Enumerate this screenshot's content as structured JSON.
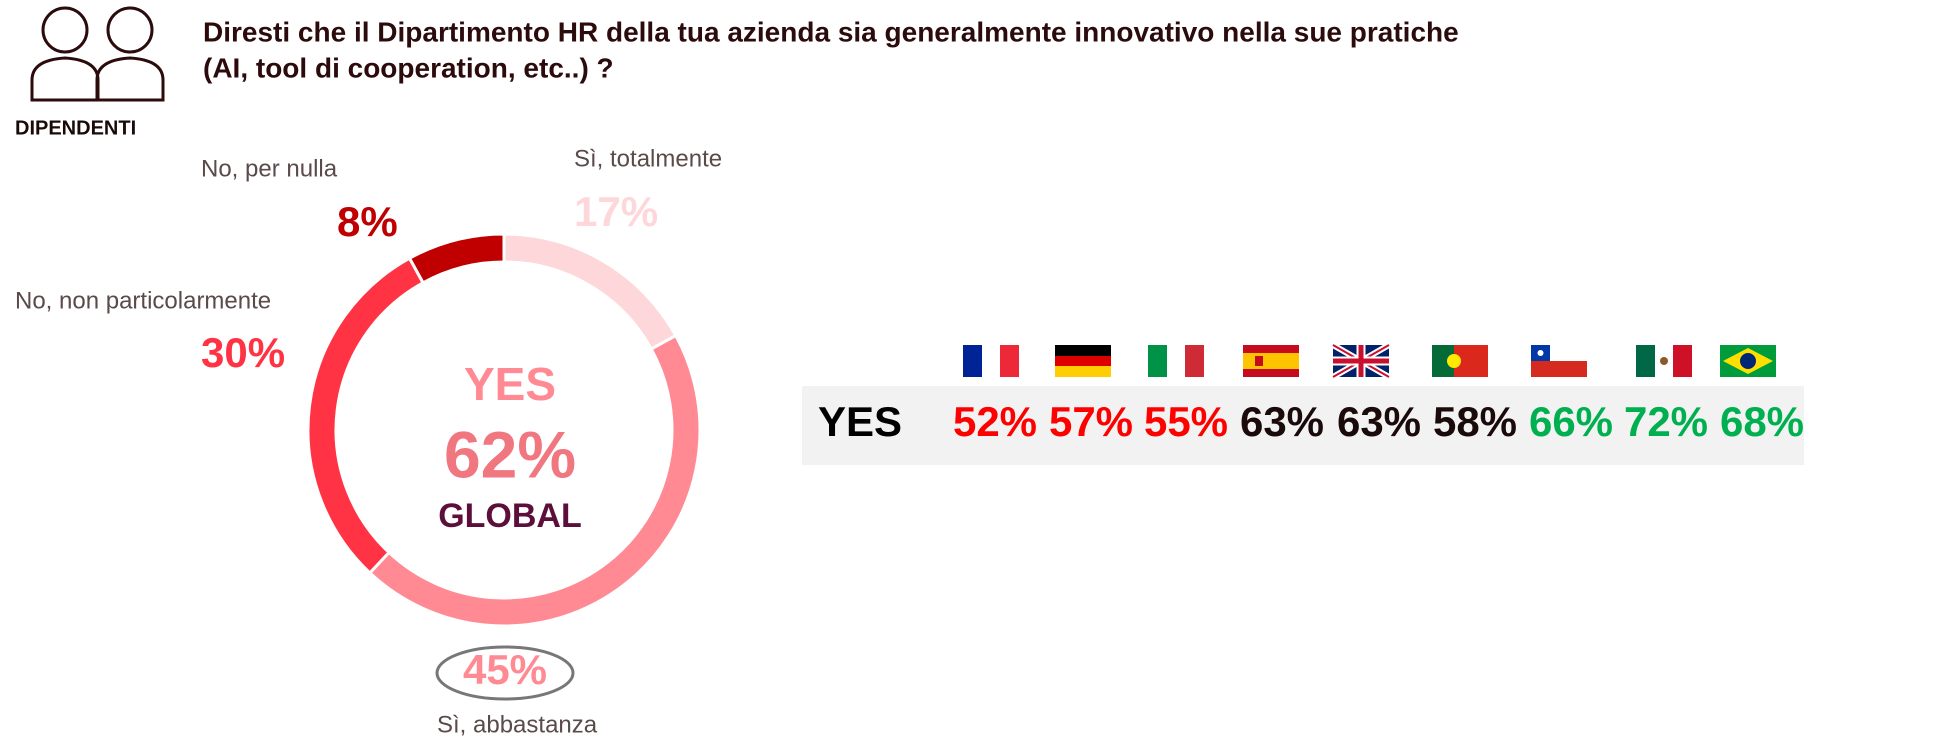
{
  "header": {
    "icon_label": "DIPENDENTI",
    "title_lines": [
      "Diresti che il Dipartimento HR della tua azienda sia generalmente innovativo nella sue pratiche",
      "(AI, tool di cooperation, etc..) ?"
    ]
  },
  "chart_data": {
    "type": "donut",
    "categories": [
      "Sì, totalmente",
      "Sì, abbastanza",
      "No, non particolarmente",
      "No, per nulla"
    ],
    "values": [
      17,
      45,
      30,
      8
    ],
    "value_labels": [
      "17%",
      "45%",
      "30%",
      "8%"
    ],
    "colors": [
      "#fdd7da",
      "#ff8a93",
      "#ff3344",
      "#c00000"
    ],
    "center": {
      "label": "YES",
      "value": 62,
      "value_label": "62%",
      "sublabel": "GLOBAL"
    }
  },
  "countries": {
    "row_label": "YES",
    "values": [
      52,
      57,
      55,
      63,
      63,
      58,
      66,
      72,
      68
    ],
    "value_labels": [
      "52%",
      "57%",
      "55%",
      "63%",
      "63%",
      "58%",
      "66%",
      "72%",
      "68%"
    ],
    "colors": [
      "#ff0000",
      "#ff0000",
      "#ff0000",
      "#1a0a0a",
      "#1a0a0a",
      "#1a0a0a",
      "#00b050",
      "#00b050",
      "#00b050"
    ]
  }
}
